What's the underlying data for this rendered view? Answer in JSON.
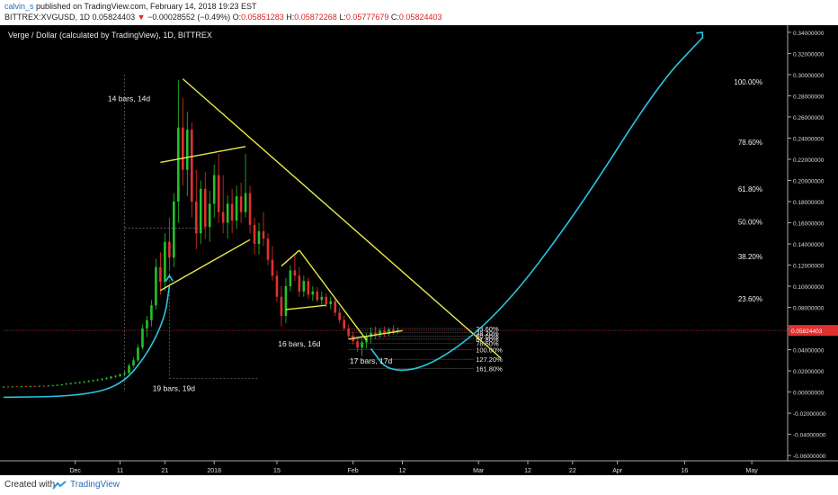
{
  "header": {
    "author": "calvin_s",
    "published": "published on TradingView.com, February 14, 2018 19:23 EST",
    "symbol": "BITTREX:XVGUSD, 1D",
    "price": "0.05824403",
    "change_arrow": "▼",
    "change": "−0.00028552 (−0.49%)",
    "o_label": "O:",
    "o_value": "0.05851283",
    "h_label": "H:",
    "h_value": "0.05872268",
    "l_label": "L:",
    "l_value": "0.05777679",
    "c_label": "C:",
    "c_value": "0.05824403"
  },
  "footer": {
    "created": "Created with",
    "brand": "TradingView"
  },
  "colors": {
    "bg": "#000000",
    "up": "#22c22c",
    "down": "#e23030",
    "trend": "#e8e84a",
    "curve": "#29c6e0",
    "grid": "#444444"
  },
  "chart_data": {
    "type": "candlestick",
    "title": "Verge / Dollar (calculated by TradingView), 1D, BITTREX",
    "ylim": [
      -0.065,
      0.345
    ],
    "x_ticks": [
      {
        "label": "Dec",
        "day": 0
      },
      {
        "label": "11",
        "day": 10
      },
      {
        "label": "21",
        "day": 20
      },
      {
        "label": "2018",
        "day": 31
      },
      {
        "label": "15",
        "day": 45
      },
      {
        "label": "Feb",
        "day": 62
      },
      {
        "label": "12",
        "day": 73
      },
      {
        "label": "Mar",
        "day": 90
      },
      {
        "label": "12",
        "day": 101
      },
      {
        "label": "22",
        "day": 111
      },
      {
        "label": "Apr",
        "day": 121
      },
      {
        "label": "16",
        "day": 136
      },
      {
        "label": "May",
        "day": 151
      }
    ],
    "y_ticks": [
      "0.34000000",
      "0.32000000",
      "0.30000000",
      "0.28000000",
      "0.26000000",
      "0.24000000",
      "0.22000000",
      "0.20000000",
      "0.18000000",
      "0.16000000",
      "0.14000000",
      "0.12000000",
      "0.10000000",
      "0.08000000",
      "0.06000000",
      "0.04000000",
      "0.02000000",
      "0.00000000",
      "-0.02000000",
      "-0.04000000",
      "-0.06000000"
    ],
    "y_tick_values": [
      0.34,
      0.32,
      0.3,
      0.28,
      0.26,
      0.24,
      0.22,
      0.2,
      0.18,
      0.16,
      0.14,
      0.12,
      0.1,
      0.08,
      0.06,
      0.04,
      0.02,
      0.0,
      -0.02,
      -0.04,
      -0.06
    ],
    "last_price": {
      "label": "0.05824403",
      "value": 0.05824403
    },
    "candles": [
      {
        "d": -16,
        "o": 0.0045,
        "h": 0.0055,
        "l": 0.004,
        "c": 0.005
      },
      {
        "d": -15,
        "o": 0.005,
        "h": 0.0058,
        "l": 0.0044,
        "c": 0.0047
      },
      {
        "d": -14,
        "o": 0.0047,
        "h": 0.0056,
        "l": 0.0043,
        "c": 0.0052
      },
      {
        "d": -13,
        "o": 0.0052,
        "h": 0.006,
        "l": 0.0047,
        "c": 0.0049
      },
      {
        "d": -12,
        "o": 0.0049,
        "h": 0.0058,
        "l": 0.0045,
        "c": 0.0054
      },
      {
        "d": -11,
        "o": 0.0054,
        "h": 0.0061,
        "l": 0.0049,
        "c": 0.0051
      },
      {
        "d": -10,
        "o": 0.0051,
        "h": 0.006,
        "l": 0.0046,
        "c": 0.0056
      },
      {
        "d": -9,
        "o": 0.0056,
        "h": 0.0063,
        "l": 0.005,
        "c": 0.0053
      },
      {
        "d": -8,
        "o": 0.0053,
        "h": 0.0062,
        "l": 0.0049,
        "c": 0.0058
      },
      {
        "d": -7,
        "o": 0.0058,
        "h": 0.0066,
        "l": 0.0052,
        "c": 0.0055
      },
      {
        "d": -6,
        "o": 0.0055,
        "h": 0.0064,
        "l": 0.0051,
        "c": 0.006
      },
      {
        "d": -5,
        "o": 0.006,
        "h": 0.0069,
        "l": 0.0055,
        "c": 0.0062
      },
      {
        "d": -4,
        "o": 0.0062,
        "h": 0.0072,
        "l": 0.0056,
        "c": 0.0067
      },
      {
        "d": -3,
        "o": 0.0067,
        "h": 0.0078,
        "l": 0.006,
        "c": 0.0072
      },
      {
        "d": -2,
        "o": 0.0072,
        "h": 0.0084,
        "l": 0.0066,
        "c": 0.0079
      },
      {
        "d": -1,
        "o": 0.0079,
        "h": 0.009,
        "l": 0.007,
        "c": 0.0083
      },
      {
        "d": 0,
        "o": 0.0083,
        "h": 0.0094,
        "l": 0.0075,
        "c": 0.0088
      },
      {
        "d": 1,
        "o": 0.0088,
        "h": 0.0098,
        "l": 0.008,
        "c": 0.0092
      },
      {
        "d": 2,
        "o": 0.0092,
        "h": 0.0104,
        "l": 0.0084,
        "c": 0.0098
      },
      {
        "d": 3,
        "o": 0.0098,
        "h": 0.011,
        "l": 0.009,
        "c": 0.0105
      },
      {
        "d": 4,
        "o": 0.0105,
        "h": 0.0118,
        "l": 0.0095,
        "c": 0.0112
      },
      {
        "d": 5,
        "o": 0.0112,
        "h": 0.0125,
        "l": 0.0102,
        "c": 0.0118
      },
      {
        "d": 6,
        "o": 0.0118,
        "h": 0.0132,
        "l": 0.0108,
        "c": 0.0125
      },
      {
        "d": 7,
        "o": 0.0125,
        "h": 0.014,
        "l": 0.0115,
        "c": 0.0133
      },
      {
        "d": 8,
        "o": 0.0133,
        "h": 0.015,
        "l": 0.012,
        "c": 0.0145
      },
      {
        "d": 9,
        "o": 0.0145,
        "h": 0.016,
        "l": 0.0132,
        "c": 0.0152
      },
      {
        "d": 10,
        "o": 0.0152,
        "h": 0.0175,
        "l": 0.014,
        "c": 0.0168
      },
      {
        "d": 11,
        "o": 0.0168,
        "h": 0.02,
        "l": 0.015,
        "c": 0.018
      },
      {
        "d": 12,
        "o": 0.018,
        "h": 0.027,
        "l": 0.017,
        "c": 0.025
      },
      {
        "d": 13,
        "o": 0.025,
        "h": 0.033,
        "l": 0.023,
        "c": 0.03
      },
      {
        "d": 14,
        "o": 0.03,
        "h": 0.045,
        "l": 0.028,
        "c": 0.042
      },
      {
        "d": 15,
        "o": 0.042,
        "h": 0.064,
        "l": 0.04,
        "c": 0.06
      },
      {
        "d": 16,
        "o": 0.06,
        "h": 0.072,
        "l": 0.052,
        "c": 0.068
      },
      {
        "d": 17,
        "o": 0.068,
        "h": 0.087,
        "l": 0.062,
        "c": 0.082
      },
      {
        "d": 18,
        "o": 0.082,
        "h": 0.126,
        "l": 0.078,
        "c": 0.118
      },
      {
        "d": 19,
        "o": 0.118,
        "h": 0.132,
        "l": 0.092,
        "c": 0.104
      },
      {
        "d": 20,
        "o": 0.104,
        "h": 0.15,
        "l": 0.096,
        "c": 0.142
      },
      {
        "d": 21,
        "o": 0.142,
        "h": 0.165,
        "l": 0.115,
        "c": 0.127
      },
      {
        "d": 22,
        "o": 0.127,
        "h": 0.188,
        "l": 0.118,
        "c": 0.18
      },
      {
        "d": 23,
        "o": 0.18,
        "h": 0.295,
        "l": 0.16,
        "c": 0.25
      },
      {
        "d": 24,
        "o": 0.25,
        "h": 0.278,
        "l": 0.195,
        "c": 0.21
      },
      {
        "d": 25,
        "o": 0.21,
        "h": 0.265,
        "l": 0.185,
        "c": 0.248
      },
      {
        "d": 26,
        "o": 0.248,
        "h": 0.255,
        "l": 0.165,
        "c": 0.18
      },
      {
        "d": 27,
        "o": 0.18,
        "h": 0.21,
        "l": 0.135,
        "c": 0.15
      },
      {
        "d": 28,
        "o": 0.15,
        "h": 0.2,
        "l": 0.14,
        "c": 0.192
      },
      {
        "d": 29,
        "o": 0.192,
        "h": 0.208,
        "l": 0.145,
        "c": 0.156
      },
      {
        "d": 30,
        "o": 0.156,
        "h": 0.19,
        "l": 0.142,
        "c": 0.178
      },
      {
        "d": 31,
        "o": 0.178,
        "h": 0.215,
        "l": 0.165,
        "c": 0.205
      },
      {
        "d": 32,
        "o": 0.205,
        "h": 0.225,
        "l": 0.16,
        "c": 0.17
      },
      {
        "d": 33,
        "o": 0.17,
        "h": 0.205,
        "l": 0.15,
        "c": 0.16
      },
      {
        "d": 34,
        "o": 0.16,
        "h": 0.186,
        "l": 0.145,
        "c": 0.178
      },
      {
        "d": 35,
        "o": 0.178,
        "h": 0.192,
        "l": 0.15,
        "c": 0.162
      },
      {
        "d": 36,
        "o": 0.162,
        "h": 0.195,
        "l": 0.154,
        "c": 0.185
      },
      {
        "d": 37,
        "o": 0.185,
        "h": 0.198,
        "l": 0.16,
        "c": 0.17
      },
      {
        "d": 38,
        "o": 0.17,
        "h": 0.225,
        "l": 0.165,
        "c": 0.188
      },
      {
        "d": 39,
        "o": 0.188,
        "h": 0.195,
        "l": 0.15,
        "c": 0.158
      },
      {
        "d": 40,
        "o": 0.158,
        "h": 0.165,
        "l": 0.13,
        "c": 0.14
      },
      {
        "d": 41,
        "o": 0.14,
        "h": 0.16,
        "l": 0.13,
        "c": 0.152
      },
      {
        "d": 42,
        "o": 0.152,
        "h": 0.17,
        "l": 0.138,
        "c": 0.145
      },
      {
        "d": 43,
        "o": 0.145,
        "h": 0.15,
        "l": 0.12,
        "c": 0.125
      },
      {
        "d": 44,
        "o": 0.125,
        "h": 0.138,
        "l": 0.105,
        "c": 0.11
      },
      {
        "d": 45,
        "o": 0.11,
        "h": 0.115,
        "l": 0.085,
        "c": 0.09
      },
      {
        "d": 46,
        "o": 0.09,
        "h": 0.1,
        "l": 0.062,
        "c": 0.072
      },
      {
        "d": 47,
        "o": 0.072,
        "h": 0.108,
        "l": 0.065,
        "c": 0.1
      },
      {
        "d": 48,
        "o": 0.1,
        "h": 0.12,
        "l": 0.095,
        "c": 0.115
      },
      {
        "d": 49,
        "o": 0.115,
        "h": 0.13,
        "l": 0.105,
        "c": 0.11
      },
      {
        "d": 50,
        "o": 0.11,
        "h": 0.118,
        "l": 0.09,
        "c": 0.095
      },
      {
        "d": 51,
        "o": 0.095,
        "h": 0.11,
        "l": 0.09,
        "c": 0.105
      },
      {
        "d": 52,
        "o": 0.105,
        "h": 0.108,
        "l": 0.088,
        "c": 0.092
      },
      {
        "d": 53,
        "o": 0.092,
        "h": 0.1,
        "l": 0.086,
        "c": 0.095
      },
      {
        "d": 54,
        "o": 0.095,
        "h": 0.099,
        "l": 0.085,
        "c": 0.087
      },
      {
        "d": 55,
        "o": 0.087,
        "h": 0.095,
        "l": 0.082,
        "c": 0.09
      },
      {
        "d": 56,
        "o": 0.09,
        "h": 0.093,
        "l": 0.08,
        "c": 0.083
      },
      {
        "d": 57,
        "o": 0.083,
        "h": 0.09,
        "l": 0.078,
        "c": 0.086
      },
      {
        "d": 58,
        "o": 0.086,
        "h": 0.088,
        "l": 0.072,
        "c": 0.075
      },
      {
        "d": 59,
        "o": 0.075,
        "h": 0.08,
        "l": 0.065,
        "c": 0.068
      },
      {
        "d": 60,
        "o": 0.068,
        "h": 0.072,
        "l": 0.058,
        "c": 0.06
      },
      {
        "d": 61,
        "o": 0.06,
        "h": 0.064,
        "l": 0.05,
        "c": 0.053
      },
      {
        "d": 62,
        "o": 0.053,
        "h": 0.057,
        "l": 0.045,
        "c": 0.048
      },
      {
        "d": 63,
        "o": 0.048,
        "h": 0.052,
        "l": 0.038,
        "c": 0.042
      },
      {
        "d": 64,
        "o": 0.042,
        "h": 0.05,
        "l": 0.034,
        "c": 0.047
      },
      {
        "d": 65,
        "o": 0.047,
        "h": 0.056,
        "l": 0.041,
        "c": 0.052
      },
      {
        "d": 66,
        "o": 0.052,
        "h": 0.061,
        "l": 0.046,
        "c": 0.056
      },
      {
        "d": 67,
        "o": 0.056,
        "h": 0.062,
        "l": 0.05,
        "c": 0.054
      },
      {
        "d": 68,
        "o": 0.054,
        "h": 0.06,
        "l": 0.051,
        "c": 0.058
      },
      {
        "d": 69,
        "o": 0.058,
        "h": 0.062,
        "l": 0.052,
        "c": 0.055
      },
      {
        "d": 70,
        "o": 0.055,
        "h": 0.061,
        "l": 0.053,
        "c": 0.059
      },
      {
        "d": 71,
        "o": 0.059,
        "h": 0.063,
        "l": 0.054,
        "c": 0.057
      },
      {
        "d": 72,
        "o": 0.057,
        "h": 0.061,
        "l": 0.055,
        "c": 0.0585
      },
      {
        "d": 73,
        "o": 0.0585,
        "h": 0.0587,
        "l": 0.0578,
        "c": 0.0582
      }
    ],
    "trendlines": [
      {
        "d1": 24,
        "p1": 0.296,
        "d2": 95,
        "p2": 0.032
      },
      {
        "d1": 19,
        "p1": 0.217,
        "d2": 38,
        "p2": 0.232
      },
      {
        "d1": 19,
        "p1": 0.096,
        "d2": 39,
        "p2": 0.144
      },
      {
        "d1": 46,
        "p1": 0.119,
        "d2": 50,
        "p2": 0.134
      },
      {
        "d1": 50,
        "p1": 0.134,
        "d2": 65,
        "p2": 0.049
      },
      {
        "d1": 47,
        "p1": 0.078,
        "d2": 56,
        "p2": 0.082
      },
      {
        "d1": 61,
        "p1": 0.05,
        "d2": 73,
        "p2": 0.058
      }
    ],
    "fib_levels": [
      {
        "label": "100.00%",
        "value": 0.293
      },
      {
        "label": "78.60%",
        "value": 0.236
      },
      {
        "label": "61.80%",
        "value": 0.192
      },
      {
        "label": "50.00%",
        "value": 0.161
      },
      {
        "label": "38.20%",
        "value": 0.128
      },
      {
        "label": "23.60%",
        "value": 0.088
      }
    ],
    "small_fib": {
      "d1": 61,
      "d2": 89,
      "levels": [
        {
          "label": "23.60%",
          "value": 0.06
        },
        {
          "label": "38.20%",
          "value": 0.056
        },
        {
          "label": "50.00%",
          "value": 0.053
        },
        {
          "label": "61.80%",
          "value": 0.05
        },
        {
          "label": "78.60%",
          "value": 0.046
        },
        {
          "label": "100.00%",
          "value": 0.04
        },
        {
          "label": "127.20%",
          "value": 0.031
        },
        {
          "label": "161.80%",
          "value": 0.022
        }
      ]
    },
    "annotations": [
      {
        "text": "14 bars, 14d",
        "d": 12,
        "p": 0.275
      },
      {
        "text": "19 bars, 19d",
        "d": 22,
        "p": 0.001
      },
      {
        "text": "16 bars, 16d",
        "d": 50,
        "p": 0.043
      },
      {
        "text": "17 bars, 17d",
        "d": 66,
        "p": 0.027
      }
    ]
  }
}
